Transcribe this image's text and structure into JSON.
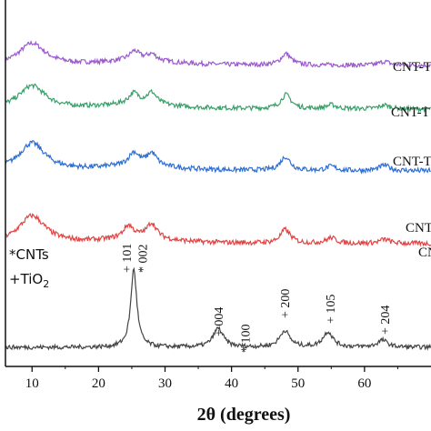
{
  "chart_data": {
    "type": "line",
    "xlabel": "2θ (degrees)",
    "ylabel": "",
    "xlim": [
      6,
      70
    ],
    "x_ticks": [
      10,
      20,
      30,
      40,
      50,
      60
    ],
    "grid": false,
    "legend_items": [
      "*CNTs",
      "+TiO2"
    ],
    "series": [
      {
        "name": "CNT-T",
        "color": "#9b59d0",
        "peaks": [
          [
            10,
            0.85
          ],
          [
            25.4,
            0.35
          ],
          [
            28,
            0.25
          ],
          [
            48.2,
            0.45
          ],
          [
            63,
            0.15
          ]
        ]
      },
      {
        "name": "CNT-T",
        "color": "#3aa06a",
        "peaks": [
          [
            10,
            0.9
          ],
          [
            25.3,
            0.4
          ],
          [
            28,
            0.45
          ],
          [
            48.2,
            0.55
          ],
          [
            55,
            0.15
          ],
          [
            63,
            0.15
          ]
        ]
      },
      {
        "name": "CNT-T",
        "color": "#2e6fd6",
        "peaks": [
          [
            10,
            1.0
          ],
          [
            25.3,
            0.45
          ],
          [
            28,
            0.45
          ],
          [
            48.1,
            0.5
          ],
          [
            55,
            0.15
          ],
          [
            63,
            0.2
          ]
        ]
      },
      {
        "name": "CNT",
        "color": "#e04545",
        "peaks": [
          [
            10,
            1.0
          ],
          [
            24.5,
            0.45
          ],
          [
            28,
            0.55
          ],
          [
            48.1,
            0.5
          ],
          [
            55,
            0.2
          ],
          [
            63,
            0.15
          ]
        ]
      },
      {
        "name": "CN",
        "color": "#444444",
        "peaks": [
          [
            25.3,
            3.3
          ],
          [
            38,
            0.8
          ],
          [
            48,
            0.7
          ],
          [
            54.5,
            0.65
          ],
          [
            62.7,
            0.3
          ]
        ]
      }
    ],
    "annotations": [
      {
        "text": "+ 101",
        "x": 24.2
      },
      {
        "text": "* 002",
        "x": 26.6
      },
      {
        "text": "+ 004",
        "x": 38
      },
      {
        "text": "* 100",
        "x": 42
      },
      {
        "text": "+ 200",
        "x": 48
      },
      {
        "text": "+ 105",
        "x": 54.8
      },
      {
        "text": "+ 204",
        "x": 63
      }
    ]
  }
}
